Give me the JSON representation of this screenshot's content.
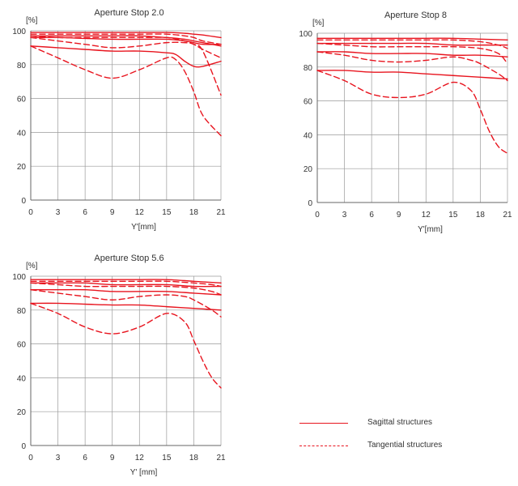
{
  "colors": {
    "curve": "#e8141e",
    "grid": "#9a9a9a",
    "axis": "#666666",
    "text": "#333333"
  },
  "legend": [
    {
      "label": "Sagittal structures",
      "style": "solid"
    },
    {
      "label": "Tangential structures",
      "style": "dashed"
    }
  ],
  "chart_data": [
    {
      "type": "line",
      "title": "Aperture Stop 2.0",
      "ylabel": "[%]",
      "xlabel": "Y'[mm]",
      "xlim": [
        0,
        21
      ],
      "ylim": [
        0,
        100
      ],
      "xticks": [
        0,
        3,
        6,
        9,
        12,
        15,
        18,
        21
      ],
      "yticks": [
        0,
        20,
        40,
        60,
        80,
        100
      ],
      "grid": true,
      "series": [
        {
          "style": "solid",
          "x": [
            0,
            3,
            6,
            9,
            12,
            15,
            17,
            18,
            19,
            21
          ],
          "y": [
            99,
            99,
            99,
            99,
            99,
            99,
            98.5,
            98,
            97.5,
            96
          ]
        },
        {
          "style": "dashed",
          "x": [
            0,
            3,
            6,
            9,
            12,
            15,
            17,
            18,
            19,
            21
          ],
          "y": [
            98,
            98,
            98,
            98,
            98,
            98,
            97,
            96,
            94,
            92
          ]
        },
        {
          "style": "solid",
          "x": [
            0,
            3,
            6,
            9,
            12,
            15,
            17,
            18,
            19,
            21
          ],
          "y": [
            97,
            97,
            97,
            97,
            97,
            96,
            95,
            94,
            93,
            91
          ]
        },
        {
          "style": "dashed",
          "x": [
            0,
            3,
            6,
            9,
            12,
            15,
            17,
            18,
            19,
            21
          ],
          "y": [
            97,
            96,
            96,
            96,
            96,
            96,
            94,
            92,
            89,
            84
          ]
        },
        {
          "style": "solid",
          "x": [
            0,
            3,
            6,
            9,
            12,
            15,
            17,
            18,
            19,
            21
          ],
          "y": [
            96,
            96,
            95.5,
            95,
            95,
            95,
            94,
            93,
            92,
            92
          ]
        },
        {
          "style": "dashed",
          "x": [
            0,
            3,
            6,
            9,
            12,
            15,
            17,
            18,
            19,
            21
          ],
          "y": [
            96,
            94,
            92,
            90,
            91,
            93,
            93,
            92,
            88,
            62
          ]
        },
        {
          "style": "solid",
          "x": [
            0,
            3,
            6,
            9,
            12,
            15,
            16,
            17,
            18,
            19,
            21
          ],
          "y": [
            91,
            90,
            89,
            88,
            88,
            87,
            86,
            82,
            79,
            79,
            82
          ]
        },
        {
          "style": "dashed",
          "x": [
            0,
            3,
            6,
            9,
            12,
            15,
            16,
            17,
            18,
            19,
            21
          ],
          "y": [
            91,
            84,
            77,
            72,
            77,
            84,
            83,
            76,
            64,
            50,
            38
          ]
        }
      ]
    },
    {
      "type": "line",
      "title": "Aperture Stop 8",
      "ylabel": "[%]",
      "xlabel": "Y'[mm]",
      "xlim": [
        0,
        21
      ],
      "ylim": [
        0,
        100
      ],
      "xticks": [
        0,
        3,
        6,
        9,
        12,
        15,
        18,
        21
      ],
      "yticks": [
        0,
        20,
        40,
        60,
        80,
        100
      ],
      "grid": true,
      "series": [
        {
          "style": "solid",
          "x": [
            0,
            3,
            6,
            9,
            12,
            15,
            18,
            21
          ],
          "y": [
            97,
            97,
            97,
            97,
            97,
            97,
            96.5,
            96
          ]
        },
        {
          "style": "dashed",
          "x": [
            0,
            3,
            6,
            9,
            12,
            15,
            18,
            20,
            21
          ],
          "y": [
            96,
            96,
            96,
            96,
            96,
            96,
            95,
            93,
            91
          ]
        },
        {
          "style": "solid",
          "x": [
            0,
            3,
            6,
            9,
            12,
            15,
            18,
            21
          ],
          "y": [
            94,
            94,
            94,
            94,
            94,
            93,
            93,
            93
          ]
        },
        {
          "style": "dashed",
          "x": [
            0,
            3,
            6,
            9,
            12,
            15,
            18,
            20,
            21
          ],
          "y": [
            94,
            93,
            92,
            92,
            92,
            92,
            91,
            88,
            82
          ]
        },
        {
          "style": "solid",
          "x": [
            0,
            3,
            6,
            9,
            12,
            15,
            18,
            21
          ],
          "y": [
            89,
            89,
            88,
            88,
            88,
            87,
            87,
            86
          ]
        },
        {
          "style": "dashed",
          "x": [
            0,
            3,
            6,
            9,
            12,
            15,
            17,
            18,
            20,
            21
          ],
          "y": [
            89,
            87,
            84,
            83,
            84,
            86,
            84,
            82,
            76,
            72
          ]
        },
        {
          "style": "solid",
          "x": [
            0,
            3,
            6,
            9,
            12,
            15,
            18,
            21
          ],
          "y": [
            78,
            78,
            77,
            77,
            76,
            75,
            74,
            73
          ]
        },
        {
          "style": "dashed",
          "x": [
            0,
            3,
            6,
            9,
            12,
            15,
            17,
            18,
            19,
            20,
            21
          ],
          "y": [
            78,
            72,
            64,
            62,
            64,
            71,
            66,
            55,
            42,
            33,
            29
          ]
        }
      ]
    },
    {
      "type": "line",
      "title": "Aperture Stop 5.6",
      "ylabel": "[%]",
      "xlabel": "Y' [mm]",
      "xlim": [
        0,
        21
      ],
      "ylim": [
        0,
        100
      ],
      "xticks": [
        0,
        3,
        6,
        9,
        12,
        15,
        18,
        21
      ],
      "yticks": [
        0,
        20,
        40,
        60,
        80,
        100
      ],
      "grid": true,
      "series": [
        {
          "style": "solid",
          "x": [
            0,
            3,
            6,
            9,
            12,
            15,
            18,
            21
          ],
          "y": [
            98,
            98,
            98,
            98,
            98,
            98,
            97,
            96
          ]
        },
        {
          "style": "dashed",
          "x": [
            0,
            3,
            6,
            9,
            12,
            15,
            18,
            20,
            21
          ],
          "y": [
            97,
            97,
            97,
            97,
            97,
            97,
            96,
            95,
            94
          ]
        },
        {
          "style": "solid",
          "x": [
            0,
            3,
            6,
            9,
            12,
            15,
            18,
            21
          ],
          "y": [
            96,
            96,
            96,
            95,
            95,
            95,
            94,
            94
          ]
        },
        {
          "style": "dashed",
          "x": [
            0,
            3,
            6,
            9,
            12,
            15,
            18,
            20,
            21
          ],
          "y": [
            96,
            95,
            94,
            94,
            94,
            94,
            93,
            91,
            89
          ]
        },
        {
          "style": "solid",
          "x": [
            0,
            3,
            6,
            9,
            12,
            15,
            18,
            21
          ],
          "y": [
            92,
            92,
            92,
            91,
            91,
            91,
            90,
            89
          ]
        },
        {
          "style": "dashed",
          "x": [
            0,
            3,
            6,
            9,
            12,
            15,
            17,
            18,
            20,
            21
          ],
          "y": [
            92,
            90,
            88,
            86,
            88,
            89,
            88,
            86,
            80,
            76
          ]
        },
        {
          "style": "solid",
          "x": [
            0,
            3,
            6,
            9,
            12,
            15,
            18,
            21
          ],
          "y": [
            84,
            84,
            83.5,
            83,
            83,
            82,
            81,
            80
          ]
        },
        {
          "style": "dashed",
          "x": [
            0,
            3,
            6,
            9,
            12,
            15,
            17,
            18,
            19,
            20,
            21
          ],
          "y": [
            84,
            78,
            70,
            66,
            70,
            78,
            73,
            62,
            50,
            40,
            34
          ]
        }
      ]
    }
  ]
}
